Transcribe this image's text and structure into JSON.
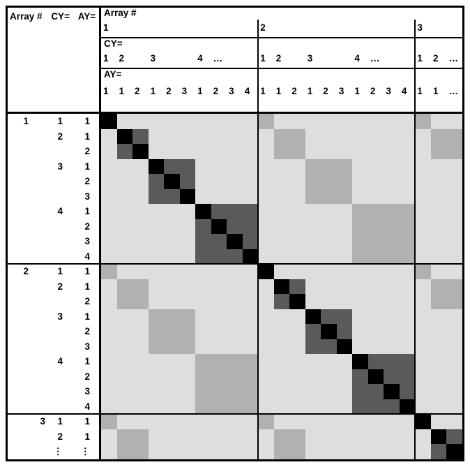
{
  "corner": {
    "array_label": "Array #",
    "cy_label": "CY=",
    "ay_label": "AY="
  },
  "header": {
    "array_title": "Array #",
    "cy_title": "CY=",
    "ay_title": "AY=",
    "array_cols": [
      "1",
      "",
      "",
      "",
      "",
      "",
      "",
      "",
      "",
      "",
      "2",
      "",
      "",
      "",
      "",
      "",
      "",
      "",
      "",
      "",
      "3",
      "",
      ""
    ],
    "cy_cols": [
      "1",
      "2",
      "",
      "3",
      "",
      "",
      "4",
      "…",
      "",
      "",
      "1",
      "2",
      "",
      "3",
      "",
      "",
      "4",
      "…",
      "",
      "",
      "1",
      "2",
      "…"
    ],
    "ay_cols": [
      "1",
      "1",
      "2",
      "1",
      "2",
      "3",
      "1",
      "2",
      "3",
      "4",
      "1",
      "1",
      "2",
      "1",
      "2",
      "3",
      "1",
      "2",
      "3",
      "4",
      "1",
      "1",
      "…"
    ]
  },
  "left_rows": [
    {
      "a": "1",
      "cy": "1",
      "ay": "1"
    },
    {
      "a": "",
      "cy": "2",
      "ay": "1"
    },
    {
      "a": "",
      "cy": "",
      "ay": "2"
    },
    {
      "a": "",
      "cy": "3",
      "ay": "1"
    },
    {
      "a": "",
      "cy": "",
      "ay": "2"
    },
    {
      "a": "",
      "cy": "",
      "ay": "3"
    },
    {
      "a": "",
      "cy": "4",
      "ay": "1"
    },
    {
      "a": "",
      "cy": "",
      "ay": "2"
    },
    {
      "a": "",
      "cy": "",
      "ay": "3"
    },
    {
      "a": "",
      "cy": "",
      "ay": "4"
    },
    {
      "a": "2",
      "cy": "1",
      "ay": "1"
    },
    {
      "a": "",
      "cy": "2",
      "ay": "1"
    },
    {
      "a": "",
      "cy": "",
      "ay": "2"
    },
    {
      "a": "",
      "cy": "3",
      "ay": "1"
    },
    {
      "a": "",
      "cy": "",
      "ay": "2"
    },
    {
      "a": "",
      "cy": "",
      "ay": "3"
    },
    {
      "a": "",
      "cy": "4",
      "ay": "1"
    },
    {
      "a": "",
      "cy": "",
      "ay": "2"
    },
    {
      "a": "",
      "cy": "",
      "ay": "3"
    },
    {
      "a": "",
      "cy": "",
      "ay": "4"
    },
    {
      "a": "3",
      "cy": "1",
      "ay": "1",
      "a_shift": true
    },
    {
      "a": "",
      "cy": "2",
      "ay": "1"
    },
    {
      "a": "",
      "cy": "⋮",
      "ay": "⋮"
    }
  ],
  "matrix": {
    "size": 23,
    "entities": [
      [
        1,
        1,
        1
      ],
      [
        1,
        2,
        1
      ],
      [
        1,
        2,
        2
      ],
      [
        1,
        3,
        1
      ],
      [
        1,
        3,
        2
      ],
      [
        1,
        3,
        3
      ],
      [
        1,
        4,
        1
      ],
      [
        1,
        4,
        2
      ],
      [
        1,
        4,
        3
      ],
      [
        1,
        4,
        4
      ],
      [
        2,
        1,
        1
      ],
      [
        2,
        2,
        1
      ],
      [
        2,
        2,
        2
      ],
      [
        2,
        3,
        1
      ],
      [
        2,
        3,
        2
      ],
      [
        2,
        3,
        3
      ],
      [
        2,
        4,
        1
      ],
      [
        2,
        4,
        2
      ],
      [
        2,
        4,
        3
      ],
      [
        2,
        4,
        4
      ],
      [
        3,
        1,
        1
      ],
      [
        3,
        2,
        1
      ],
      [
        3,
        2,
        2
      ]
    ],
    "shading": {
      "diagonal_cell": "#000000",
      "same_array_same_cy": "#5a5a5a",
      "diff_array_same_cy": "#b1b1b1",
      "otherwise": "#dedede"
    }
  },
  "colors": {
    "border": "#000000",
    "background": "#ffffff"
  }
}
